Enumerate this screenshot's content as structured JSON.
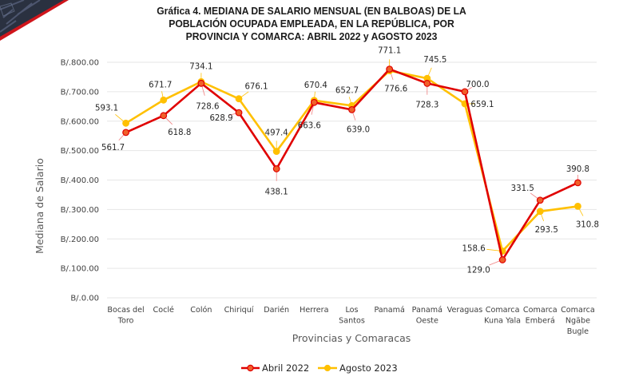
{
  "title": {
    "lines": [
      "Gráfica 4.  MEDIANA DE SALARIO MENSUAL (EN BALBOAS) DE LA",
      "POBLACIÓN OCUPADA EMPLEADA, EN LA REPÚBLICA, POR",
      "PROVINCIA Y COMARCA: ABRIL 2022 y AGOSTO 2023"
    ]
  },
  "colors": {
    "abril_line": "#E00000",
    "abril_marker_fill": "#F0602A",
    "agosto_line": "#FFC000",
    "agosto_marker_fill": "#FFC000",
    "grid": "#E6E6E6",
    "corner_dark": "#2A3140",
    "corner_red": "#D0151B"
  },
  "chart_data": {
    "type": "line",
    "title": "Gráfica 4.  MEDIANA DE SALARIO MENSUAL (EN BALBOAS) DE LA POBLACIÓN OCUPADA EMPLEADA, EN LA REPÚBLICA, POR PROVINCIA Y COMARCA: ABRIL 2022 y AGOSTO 2023",
    "xlabel": "Provincias y Comaracas",
    "ylabel": "Mediana de Salario",
    "ylim": [
      0,
      800
    ],
    "yticks": [
      0,
      100,
      200,
      300,
      400,
      500,
      600,
      700,
      800
    ],
    "ytick_labels": [
      "B/.0.00",
      "B/.100.00",
      "B/.200.00",
      "B/.300.00",
      "B/.400.00",
      "B/.500.00",
      "B/.600.00",
      "B/.700.00",
      "B/.800.00"
    ],
    "grid": true,
    "legend_position": "bottom",
    "categories": [
      [
        "Bocas del",
        "Toro"
      ],
      [
        "Coclé"
      ],
      [
        "Colón"
      ],
      [
        "Chiriquí"
      ],
      [
        "Darién"
      ],
      [
        "Herrera"
      ],
      [
        "Los",
        "Santos"
      ],
      [
        "Panamá"
      ],
      [
        "Panamá",
        "Oeste"
      ],
      [
        "Veraguas"
      ],
      [
        "Comarca",
        "Kuna Yala"
      ],
      [
        "Comarca",
        "Emberá"
      ],
      [
        "Comarca",
        "Ngäbe",
        "Bugle"
      ]
    ],
    "series": [
      {
        "name": "Abril 2022",
        "values": [
          561.7,
          618.8,
          728.6,
          628.9,
          438.1,
          663.6,
          639.0,
          776.6,
          728.3,
          700.0,
          129.0,
          331.5,
          390.8
        ],
        "labels": [
          "561.7",
          "618.8",
          "728.6",
          "628.9",
          "438.1",
          "663.6",
          "639.0",
          "776.6",
          "728.3",
          "700.0",
          "129.0",
          "331.5",
          "390.8"
        ]
      },
      {
        "name": "Agosto 2023",
        "values": [
          593.1,
          671.7,
          734.1,
          676.1,
          497.4,
          670.4,
          652.7,
          771.1,
          745.5,
          659.1,
          158.6,
          293.5,
          310.8
        ],
        "labels": [
          "593.1",
          "671.7",
          "734.1",
          "676.1",
          "497.4",
          "670.4",
          "652.7",
          "771.1",
          "745.5",
          "659.1",
          "158.6",
          "293.5",
          "310.8"
        ]
      }
    ]
  },
  "label_layout": {
    "abril": [
      [
        -16,
        18
      ],
      [
        20,
        20
      ],
      [
        8,
        28
      ],
      [
        -22,
        6
      ],
      [
        0,
        28
      ],
      [
        -6,
        28
      ],
      [
        8,
        24
      ],
      [
        8,
        24
      ],
      [
        0,
        26
      ],
      [
        16,
        -10
      ],
      [
        -30,
        12
      ],
      [
        -22,
        -16
      ],
      [
        0,
        -18
      ]
    ],
    "agosto": [
      [
        -24,
        -20
      ],
      [
        -4,
        -20
      ],
      [
        0,
        -20
      ],
      [
        22,
        -16
      ],
      [
        0,
        -24
      ],
      [
        2,
        -20
      ],
      [
        -6,
        -20
      ],
      [
        0,
        -26
      ],
      [
        10,
        -24
      ],
      [
        22,
        0
      ],
      [
        -36,
        -4
      ],
      [
        8,
        22
      ],
      [
        12,
        22
      ]
    ]
  }
}
